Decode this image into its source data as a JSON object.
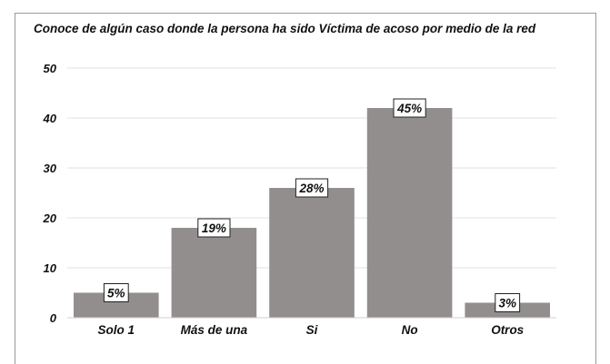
{
  "chart_data": {
    "type": "bar",
    "title": "Conoce de algún caso donde la persona ha sido Víctima de acoso por medio de la red",
    "categories": [
      "Solo 1",
      "Más de una",
      "Si",
      "No",
      "Otros"
    ],
    "values": [
      5,
      18,
      26,
      42,
      3
    ],
    "data_labels": [
      "5%",
      "19%",
      "28%",
      "45%",
      "3%"
    ],
    "xlabel": "",
    "ylabel": "",
    "ylim": [
      0,
      50
    ],
    "yticks": [
      "0",
      "10",
      "20",
      "30",
      "40",
      "50"
    ],
    "grid": true,
    "bar_color": "#938e8e",
    "grid_color": "#e2e2e2"
  }
}
